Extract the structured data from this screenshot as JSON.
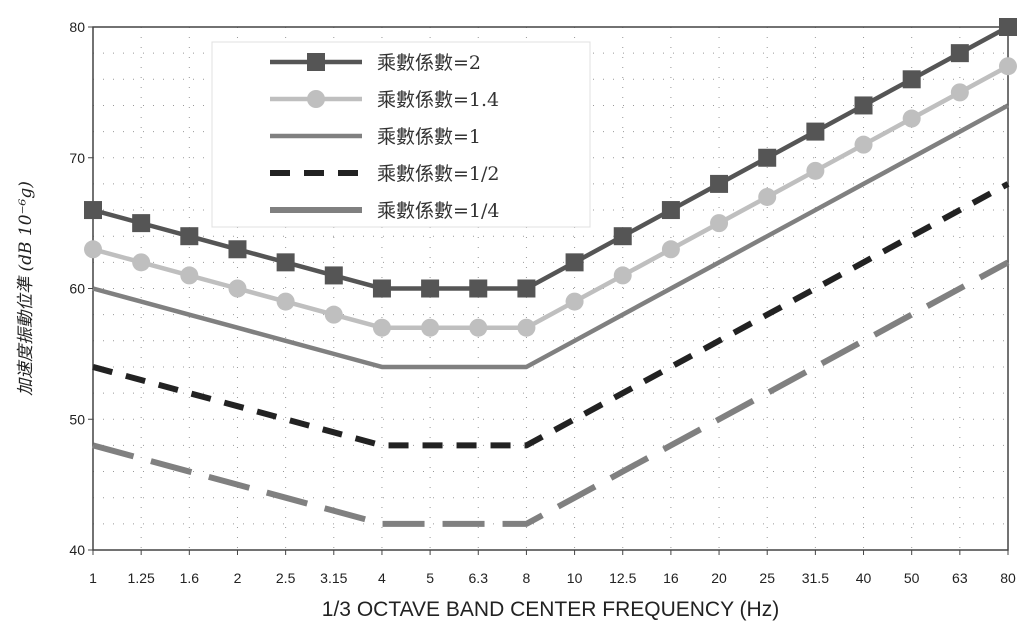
{
  "chart_data": {
    "type": "line",
    "xlabel": "1/3 OCTAVE BAND CENTER FREQUENCY (Hz)",
    "ylabel": "加速度振動位準 (dB 10⁻⁶g)",
    "categories": [
      "1",
      "1.25",
      "1.6",
      "2",
      "2.5",
      "3.15",
      "4",
      "5",
      "6.3",
      "8",
      "10",
      "12.5",
      "16",
      "20",
      "25",
      "31.5",
      "40",
      "50",
      "63",
      "80"
    ],
    "ylim": [
      40,
      80
    ],
    "yticks": [
      40,
      50,
      60,
      70,
      80
    ],
    "grid": "dotted",
    "legend_position": "top-left",
    "series": [
      {
        "name": "乘數係數=2",
        "color": "#555555",
        "dash": "solid",
        "marker": "square",
        "values": [
          66,
          65,
          64,
          63,
          62,
          61,
          60,
          60,
          60,
          60,
          62,
          64,
          66,
          68,
          70,
          72,
          74,
          76,
          78,
          80
        ]
      },
      {
        "name": "乘數係數=1.4",
        "color": "#bfbfbf",
        "dash": "solid",
        "marker": "circle",
        "values": [
          63,
          62,
          61,
          60,
          59,
          58,
          57,
          57,
          57,
          57,
          59,
          61,
          63,
          65,
          67,
          69,
          71,
          73,
          75,
          77
        ]
      },
      {
        "name": "乘數係數=1",
        "color": "#808080",
        "dash": "solid",
        "marker": "none",
        "values": [
          60,
          59,
          58,
          57,
          56,
          55,
          54,
          54,
          54,
          54,
          56,
          58,
          60,
          62,
          64,
          66,
          68,
          70,
          72,
          74
        ]
      },
      {
        "name": "乘數係數=1/2",
        "color": "#222222",
        "dash": "dashed",
        "marker": "none",
        "values": [
          54,
          53,
          52,
          51,
          50,
          49,
          48,
          48,
          48,
          48,
          50,
          52,
          54,
          56,
          58,
          60,
          62,
          64,
          66,
          68
        ]
      },
      {
        "name": "乘數係數=1/4",
        "color": "#808080",
        "dash": "longdash",
        "marker": "none",
        "values": [
          48,
          47,
          46,
          45,
          44,
          43,
          42,
          42,
          42,
          42,
          44,
          46,
          48,
          50,
          52,
          54,
          56,
          58,
          60,
          62
        ]
      }
    ]
  }
}
